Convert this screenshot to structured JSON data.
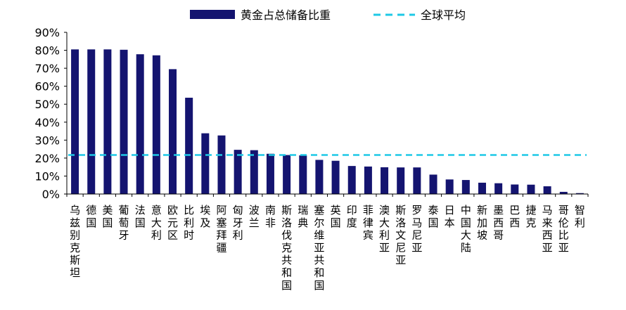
{
  "chart_data": {
    "type": "bar",
    "yunit": "%",
    "ylim": [
      0,
      90
    ],
    "yticks": [
      0,
      10,
      20,
      30,
      40,
      50,
      60,
      70,
      80,
      90
    ],
    "legend_position": "top",
    "categories": [
      "乌兹别克斯坦",
      "德国",
      "美国",
      "葡萄牙",
      "法国",
      "意大利",
      "欧元区",
      "比利时",
      "埃及",
      "阿塞拜疆",
      "匈牙利",
      "波兰",
      "南非",
      "斯洛伐克共和国",
      "瑞典",
      "塞尔维亚共和国",
      "英国",
      "印度",
      "菲律宾",
      "澳大利亚",
      "斯洛文尼亚",
      "罗马尼亚",
      "泰国",
      "日本",
      "中国大陆",
      "新加坡",
      "墨西哥",
      "巴西",
      "捷克",
      "马来西亚",
      "哥伦比亚",
      "智利"
    ],
    "series": [
      {
        "name": "黄金占总储备比重",
        "kind": "bar",
        "color": "#141470",
        "values": [
          80.5,
          80.5,
          80.5,
          80.3,
          77.8,
          77.2,
          69.5,
          53.6,
          33.8,
          32.6,
          24.6,
          24.4,
          22.4,
          21.7,
          21.5,
          19.0,
          18.5,
          15.6,
          15.3,
          14.9,
          14.8,
          14.8,
          10.8,
          8.1,
          7.8,
          6.3,
          6.0,
          5.3,
          5.2,
          4.3,
          1.2,
          0.5
        ]
      },
      {
        "name": "全球平均",
        "kind": "dashed-line",
        "color": "#1EC8E6",
        "value": 21.7
      }
    ]
  }
}
